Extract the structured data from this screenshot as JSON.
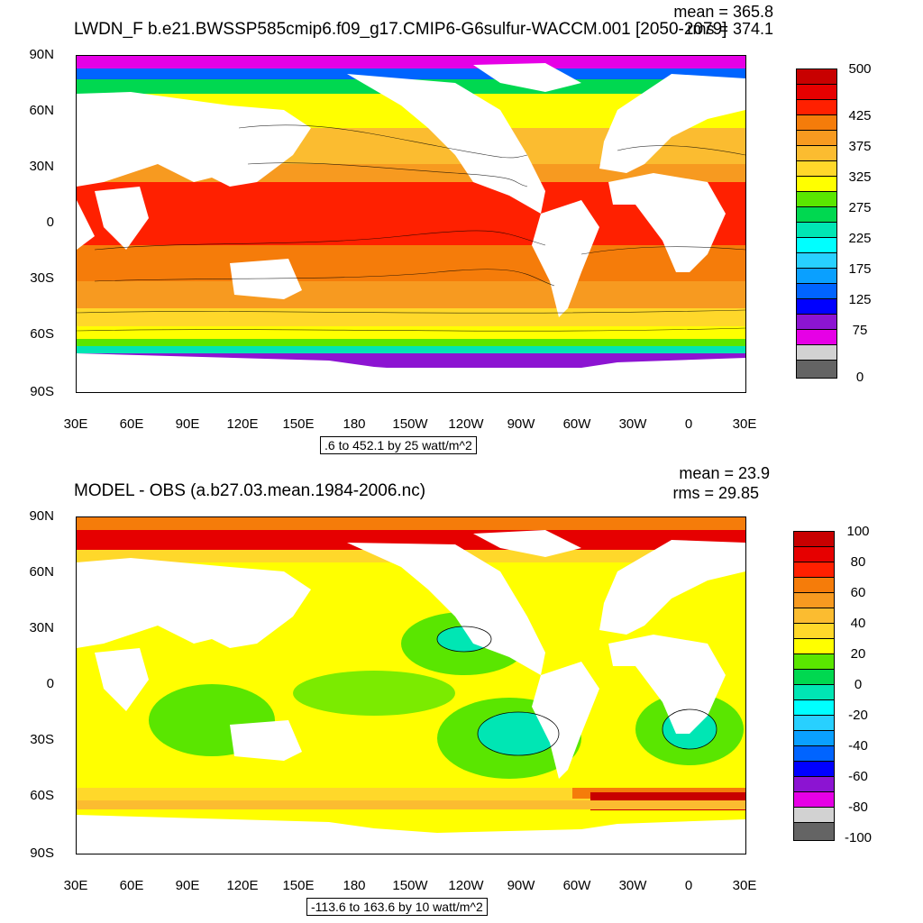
{
  "panel_top": {
    "title": "LWDN_F b.e21.BWSSP585cmip6.f09_g17.CMIP6-G6sulfur-WACCM.001 [2050-2079]",
    "mean": "mean = 365.8",
    "rms": "rms = 374.1",
    "yticks": [
      "90N",
      "60N",
      "30N",
      "0",
      "30S",
      "60S",
      "90S"
    ],
    "xticks": [
      "30E",
      "60E",
      "90E",
      "120E",
      "150E",
      "180",
      "150W",
      "120W",
      "90W",
      "60W",
      "30W",
      "0",
      "30E"
    ],
    "info": ".6 to 452.1 by 25 watt/m^2",
    "colorbar": {
      "colors": [
        "#c80000",
        "#e60000",
        "#ff2000",
        "#f57c0a",
        "#f79a20",
        "#fbbc30",
        "#ffd82a",
        "#ffff00",
        "#5ae600",
        "#00d850",
        "#00e6b4",
        "#00ffff",
        "#28d0ff",
        "#0aa0ff",
        "#0064ff",
        "#0000ff",
        "#8c14d2",
        "#e600e6",
        "#d2d2d2",
        "#646464"
      ],
      "labels": [
        "500",
        "425",
        "375",
        "325",
        "275",
        "225",
        "175",
        "125",
        "75",
        "0"
      ]
    }
  },
  "panel_bottom": {
    "title": "MODEL - OBS (a.b27.03.mean.1984-2006.nc)",
    "mean": "mean = 23.9",
    "rms": "rms = 29.85",
    "yticks": [
      "90N",
      "60N",
      "30N",
      "0",
      "30S",
      "60S",
      "90S"
    ],
    "xticks": [
      "30E",
      "60E",
      "90E",
      "120E",
      "150E",
      "180",
      "150W",
      "120W",
      "90W",
      "60W",
      "30W",
      "0",
      "30E"
    ],
    "info": "-113.6 to 163.6 by 10 watt/m^2",
    "colorbar": {
      "colors": [
        "#c80000",
        "#e60000",
        "#ff2000",
        "#f57c0a",
        "#f79a20",
        "#fbbc30",
        "#ffd82a",
        "#ffff00",
        "#5ae600",
        "#00d850",
        "#00e6b4",
        "#00ffff",
        "#28d0ff",
        "#0aa0ff",
        "#0064ff",
        "#0000ff",
        "#8c14d2",
        "#e600e6",
        "#d2d2d2",
        "#646464"
      ],
      "labels": [
        "100",
        "80",
        "60",
        "40",
        "20",
        "0",
        "-20",
        "-40",
        "-60",
        "-80",
        "-100"
      ]
    }
  }
}
